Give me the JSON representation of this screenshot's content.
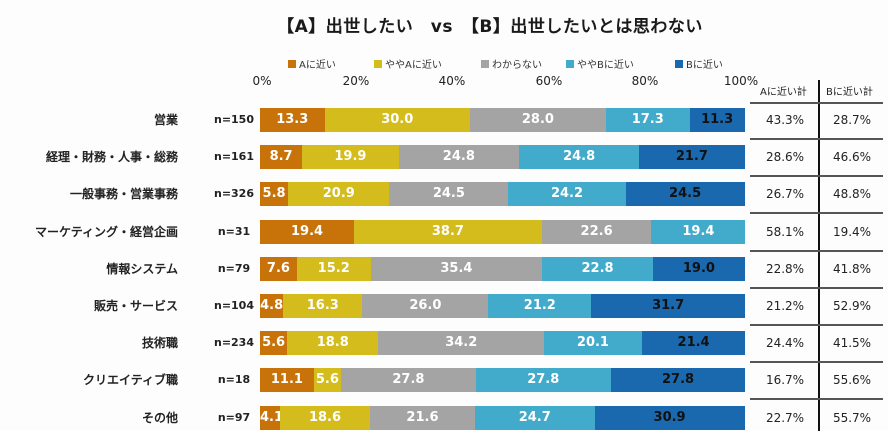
{
  "chart_data": {
    "type": "bar",
    "orientation": "horizontal",
    "stacked": true,
    "title": "【A】出世したい　vs　【B】出世したいとは思わない",
    "xlabel": "",
    "ylabel": "",
    "xlim": [
      0,
      100
    ],
    "x_ticks": [
      "0%",
      "20%",
      "40%",
      "60%",
      "80%",
      "100%"
    ],
    "grid": false,
    "legend_position": "top",
    "categories": [
      "営業",
      "経理・財務・人事・総務",
      "一般事務・営業事務",
      "マーケティング・経営企画",
      "情報システム",
      "販売・サービス",
      "技術職",
      "クリエイティブ職",
      "その他"
    ],
    "sample_sizes": [
      "n=150",
      "n=161",
      "n=326",
      "n=31",
      "n=79",
      "n=104",
      "n=234",
      "n=18",
      "n=97"
    ],
    "series": [
      {
        "name": "Aに近い",
        "color": "#c8730a",
        "label_color": "#ffffff",
        "values": [
          13.3,
          8.7,
          5.8,
          19.4,
          7.6,
          4.8,
          5.6,
          11.1,
          4.1
        ]
      },
      {
        "name": "ややAに近い",
        "color": "#d4bc1c",
        "label_color": "#ffffff",
        "values": [
          30.0,
          19.9,
          20.9,
          38.7,
          15.2,
          16.3,
          18.8,
          5.6,
          18.6
        ]
      },
      {
        "name": "わからない",
        "color": "#a4a4a4",
        "label_color": "#ffffff",
        "values": [
          28.0,
          24.8,
          24.5,
          22.6,
          35.4,
          26.0,
          34.2,
          27.8,
          21.6
        ]
      },
      {
        "name": "ややBに近い",
        "color": "#42aacb",
        "label_color": "#ffffff",
        "values": [
          17.3,
          24.8,
          24.2,
          19.4,
          22.8,
          21.2,
          20.1,
          27.8,
          24.7
        ]
      },
      {
        "name": "Bに近い",
        "color": "#1a68ad",
        "label_color": "#111111",
        "values": [
          11.3,
          21.7,
          24.5,
          0,
          19.0,
          31.7,
          21.4,
          27.8,
          30.9
        ]
      }
    ],
    "summary_table": {
      "headers": [
        "Aに近い計",
        "Bに近い計"
      ],
      "rows": [
        [
          "43.3%",
          "28.7%"
        ],
        [
          "28.6%",
          "46.6%"
        ],
        [
          "26.7%",
          "48.8%"
        ],
        [
          "58.1%",
          "19.4%"
        ],
        [
          "22.8%",
          "41.8%"
        ],
        [
          "21.2%",
          "52.9%"
        ],
        [
          "24.4%",
          "41.5%"
        ],
        [
          "16.7%",
          "55.6%"
        ],
        [
          "22.7%",
          "55.7%"
        ]
      ]
    }
  }
}
